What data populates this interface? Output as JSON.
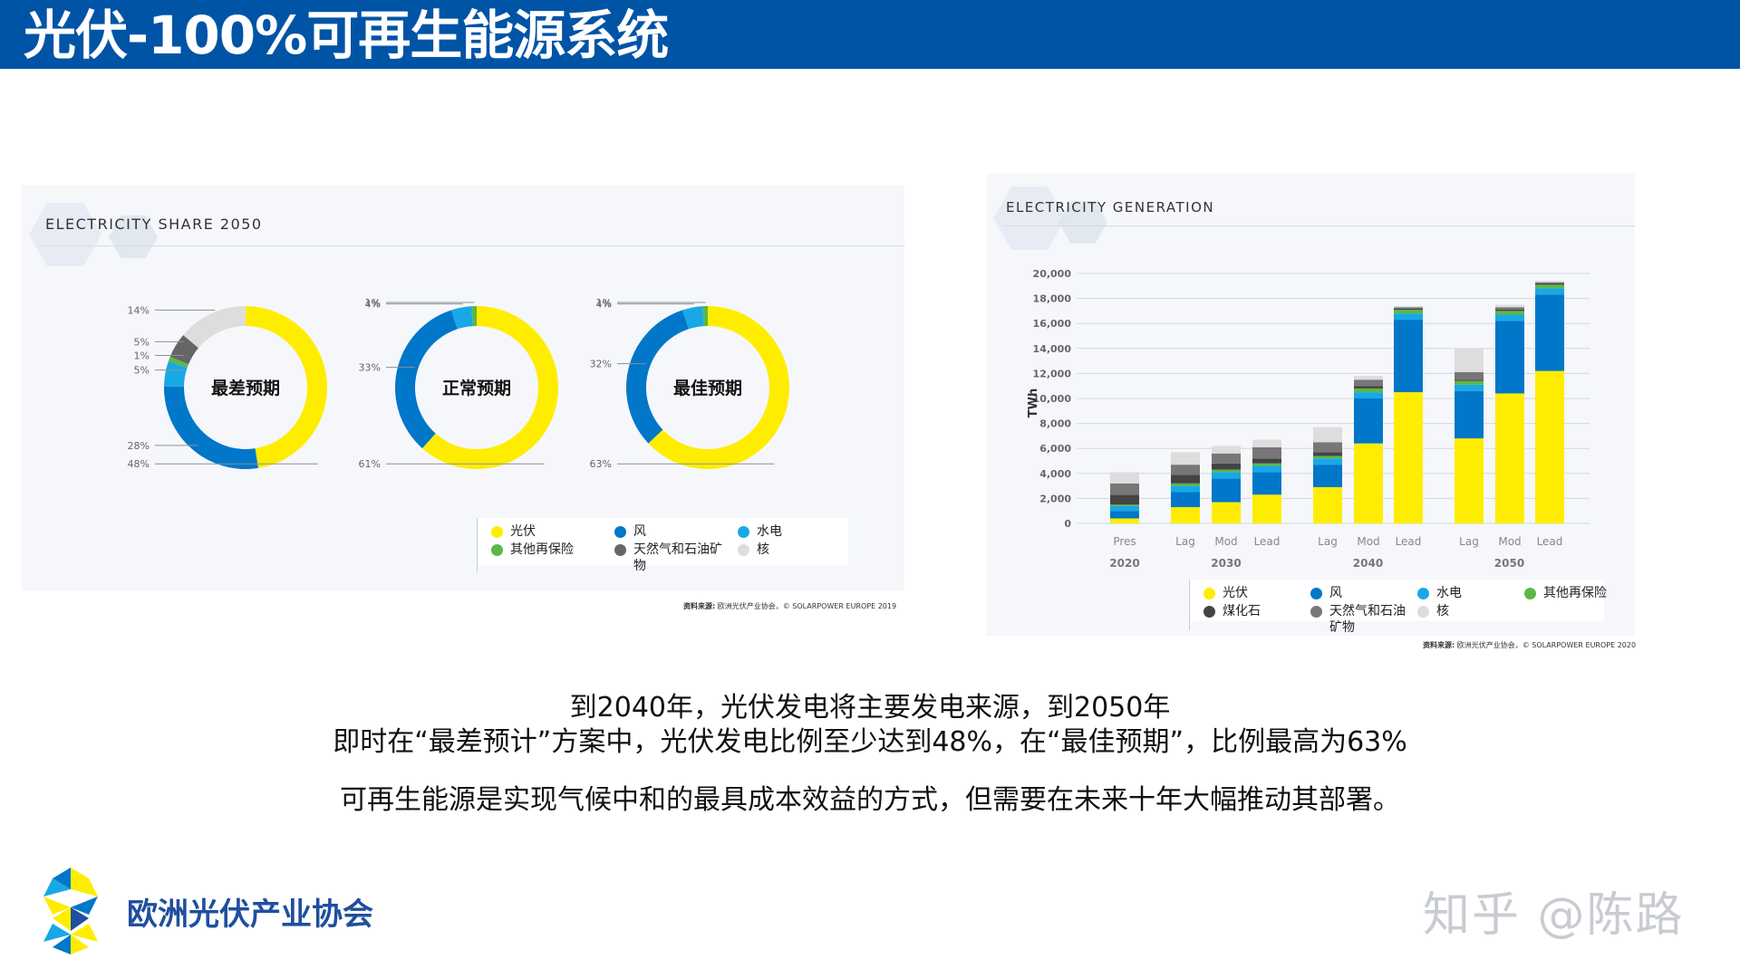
{
  "header": {
    "title": "光伏-100%可再生能源系统"
  },
  "left_panel": {
    "title": "ELECTRICITY SHARE 2050",
    "source_label": "资料来源:",
    "source_text": "欧洲光伏产业协会，© SOLARPOWER EUROPE 2019",
    "legend": [
      {
        "label": "光伏",
        "color": "#ffed00"
      },
      {
        "label": "风",
        "color": "#0077c8"
      },
      {
        "label": "水电",
        "color": "#19a8e6"
      },
      {
        "label": "其他再保险",
        "color": "#5bb847"
      },
      {
        "label": "天然气和石油矿物",
        "color": "#666666"
      },
      {
        "label": "核",
        "color": "#dddddd"
      }
    ]
  },
  "right_panel": {
    "title": "ELECTRICITY GENERATION",
    "source_label": "资料来源:",
    "source_text": "欧洲光伏产业协会，© SOLARPOWER EUROPE 2020",
    "legend": [
      {
        "label": "光伏",
        "color": "#ffed00"
      },
      {
        "label": "风",
        "color": "#0077c8"
      },
      {
        "label": "水电",
        "color": "#19a8e6"
      },
      {
        "label": "其他再保险",
        "color": "#5bb847"
      },
      {
        "label": "煤化石",
        "color": "#444444"
      },
      {
        "label": "天然气和石油矿物",
        "color": "#777777"
      },
      {
        "label": "核",
        "color": "#dddddd"
      }
    ]
  },
  "chart_data": [
    {
      "type": "pie",
      "center_label": "最差预期",
      "slices": [
        {
          "name": "光伏",
          "value": 48,
          "label": "48%",
          "color": "#ffed00"
        },
        {
          "name": "风",
          "value": 28,
          "label": "28%",
          "color": "#0077c8"
        },
        {
          "name": "水电",
          "value": 5,
          "label": "5%",
          "color": "#19a8e6"
        },
        {
          "name": "其他再保险",
          "value": 1,
          "label": "1%",
          "color": "#5bb847"
        },
        {
          "name": "天然气和石油矿物",
          "value": 5,
          "label": "5%",
          "color": "#666666"
        },
        {
          "name": "核",
          "value": 14,
          "label": "14%",
          "color": "#dddddd"
        }
      ]
    },
    {
      "type": "pie",
      "center_label": "正常预期",
      "slices": [
        {
          "name": "光伏",
          "value": 61,
          "label": "61%",
          "color": "#ffed00"
        },
        {
          "name": "风",
          "value": 33,
          "label": "33%",
          "color": "#0077c8"
        },
        {
          "name": "水电",
          "value": 4,
          "label": "4%",
          "color": "#19a8e6"
        },
        {
          "name": "其他再保险",
          "value": 1,
          "label": "1%",
          "color": "#5bb847"
        }
      ]
    },
    {
      "type": "pie",
      "center_label": "最佳预期",
      "slices": [
        {
          "name": "光伏",
          "value": 63,
          "label": "63%",
          "color": "#ffed00"
        },
        {
          "name": "风",
          "value": 32,
          "label": "32%",
          "color": "#0077c8"
        },
        {
          "name": "水电",
          "value": 4,
          "label": "4%",
          "color": "#19a8e6"
        },
        {
          "name": "其他再保险",
          "value": 1,
          "label": "1%",
          "color": "#5bb847"
        }
      ]
    },
    {
      "type": "bar",
      "stacked": true,
      "ylabel": "TWh",
      "ylim": [
        0,
        20000
      ],
      "yticks": [
        0,
        2000,
        4000,
        6000,
        8000,
        10000,
        12000,
        14000,
        16000,
        18000,
        20000
      ],
      "ytick_labels": [
        "0",
        "2,000",
        "4,000",
        "6,000",
        "8,000",
        "10,000",
        "12,000",
        "14,000",
        "16,000",
        "18,000",
        "20,000"
      ],
      "categories": [
        "Pres",
        "Lag",
        "Mod",
        "Lead",
        "Lag",
        "Mod",
        "Lead",
        "Lag",
        "Mod",
        "Lead"
      ],
      "groups": [
        {
          "label": "2020",
          "indices": [
            0
          ]
        },
        {
          "label": "2030",
          "indices": [
            1,
            2,
            3
          ]
        },
        {
          "label": "2040",
          "indices": [
            4,
            5,
            6
          ]
        },
        {
          "label": "2050",
          "indices": [
            7,
            8,
            9
          ]
        }
      ],
      "series": [
        {
          "name": "光伏",
          "color": "#ffed00",
          "values": [
            400,
            1300,
            1700,
            2300,
            2900,
            6400,
            10500,
            6800,
            10400,
            12200
          ]
        },
        {
          "name": "风",
          "color": "#0077c8",
          "values": [
            600,
            1200,
            1900,
            1800,
            1800,
            3600,
            5800,
            3800,
            5800,
            6100
          ]
        },
        {
          "name": "水电",
          "color": "#19a8e6",
          "values": [
            400,
            500,
            500,
            500,
            500,
            500,
            500,
            500,
            500,
            500
          ]
        },
        {
          "name": "其他再保险",
          "color": "#5bb847",
          "values": [
            100,
            200,
            200,
            200,
            200,
            300,
            300,
            300,
            300,
            300
          ]
        },
        {
          "name": "煤化石",
          "color": "#444444",
          "values": [
            800,
            700,
            500,
            400,
            300,
            200,
            100,
            100,
            100,
            100
          ]
        },
        {
          "name": "天然气和石油矿物",
          "color": "#777777",
          "values": [
            900,
            800,
            800,
            900,
            800,
            500,
            100,
            600,
            200,
            100
          ]
        },
        {
          "name": "核",
          "color": "#dddddd",
          "values": [
            900,
            1000,
            600,
            600,
            1200,
            300,
            100,
            1900,
            200,
            100
          ]
        }
      ]
    }
  ],
  "captions": {
    "line1": "到2040年，光伏发电将主要发电来源，到2050年",
    "line2": "即时在“最差预计”方案中，光伏发电比例至少达到48%，在“最佳预期”，比例最高为63%",
    "line3": "可再生能源是实现气候中和的最具成本效益的方式，但需要在未来十年大幅推动其部署。"
  },
  "footer": {
    "org_name": "欧洲光伏产业协会",
    "watermark": "知乎 @陈路"
  }
}
